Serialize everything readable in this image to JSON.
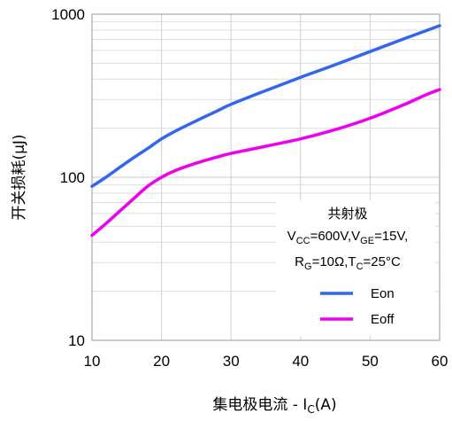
{
  "chart_data": {
    "type": "line",
    "title": "",
    "xlabel": "集电极电流 - I_C(A)",
    "xlabel_main": "集电极电流 - I",
    "xlabel_sub": "C",
    "xlabel_tail": "(A)",
    "ylabel": "开关损耗(μJ)",
    "xlim": [
      10,
      60
    ],
    "ylim": [
      10,
      1000
    ],
    "yscale": "log",
    "grid": true,
    "x_ticks": [
      10,
      20,
      30,
      40,
      50,
      60
    ],
    "y_ticks": [
      10,
      100,
      1000
    ],
    "x_tick_labels": [
      "10",
      "20",
      "30",
      "40",
      "50",
      "60"
    ],
    "y_tick_labels": [
      "10",
      "100",
      "1000"
    ],
    "legend_position": "bottom-right",
    "series": [
      {
        "name": "Eon",
        "color": "#3366ee",
        "x": [
          10,
          12,
          14,
          16,
          18,
          20,
          22,
          25,
          28,
          30,
          35,
          40,
          45,
          50,
          55,
          58,
          60
        ],
        "y": [
          88,
          100,
          115,
          132,
          150,
          172,
          192,
          222,
          255,
          280,
          340,
          410,
          490,
          590,
          710,
          790,
          850
        ]
      },
      {
        "name": "Eoff",
        "color": "#ee00ee",
        "x": [
          10,
          12,
          14,
          16,
          18,
          20,
          22,
          25,
          28,
          30,
          35,
          40,
          45,
          50,
          55,
          58,
          60
        ],
        "y": [
          44,
          52,
          62,
          74,
          88,
          100,
          110,
          122,
          133,
          140,
          155,
          172,
          196,
          230,
          280,
          320,
          345
        ]
      }
    ],
    "annotation": {
      "line1": "共射极",
      "line2": [
        {
          "t": "V",
          "sub": false
        },
        {
          "t": "CC",
          "sub": true
        },
        {
          "t": "=600V,V",
          "sub": false
        },
        {
          "t": "GE",
          "sub": true
        },
        {
          "t": "=15V,",
          "sub": false
        }
      ],
      "line3": [
        {
          "t": "R",
          "sub": false
        },
        {
          "t": "G",
          "sub": true
        },
        {
          "t": "=10Ω,T",
          "sub": false
        },
        {
          "t": "C",
          "sub": true
        },
        {
          "t": "=25°C",
          "sub": false
        }
      ]
    }
  }
}
